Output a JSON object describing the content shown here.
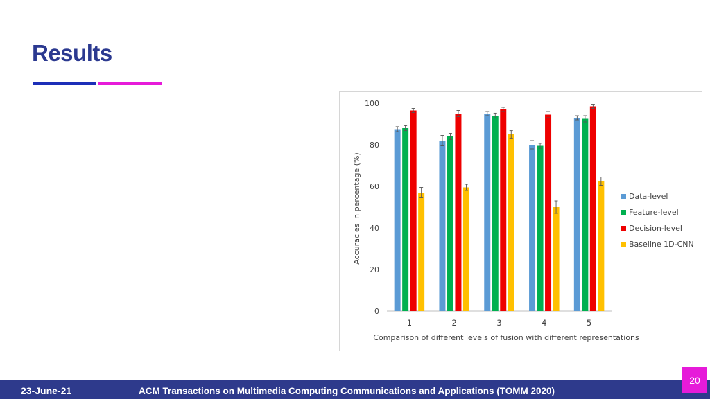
{
  "slide": {
    "title": "Results",
    "footer_date": "23-June-21",
    "footer_journal": "ACM Transactions on Multimedia Computing Communications and Applications (TOMM 2020)",
    "page_number": "20"
  },
  "colors": {
    "title": "#2b3990",
    "underline_left": "#1c2fb8",
    "underline_right": "#e61bd9",
    "footer": "#2e3a8c",
    "page_badge": "#e61bd9"
  },
  "chart_data": {
    "type": "bar",
    "title": "",
    "xlabel": "Comparison of different levels of fusion with different representations",
    "ylabel": "Accuracies in percentage (%)",
    "ylim": [
      0,
      100
    ],
    "yticks": [
      0,
      20,
      40,
      60,
      80,
      100
    ],
    "grid": false,
    "legend_position": "right",
    "categories": [
      "1",
      "2",
      "3",
      "4",
      "5"
    ],
    "series": [
      {
        "name": "Data-level",
        "color": "#5b9bd5",
        "values": [
          87.5,
          82,
          95,
          80,
          93
        ],
        "errors": [
          1.2,
          2.5,
          1.0,
          2.0,
          1.0
        ]
      },
      {
        "name": "Feature-level",
        "color": "#00b050",
        "values": [
          88,
          84,
          94,
          79.5,
          92.5
        ],
        "errors": [
          1.2,
          1.5,
          1.2,
          1.2,
          1.5
        ]
      },
      {
        "name": "Decision-level",
        "color": "#ee0000",
        "values": [
          96.5,
          95,
          97,
          94.5,
          98.5
        ],
        "errors": [
          1.0,
          1.5,
          1.0,
          1.5,
          1.0
        ]
      },
      {
        "name": "Baseline 1D-CNN",
        "color": "#ffc000",
        "values": [
          57,
          59.5,
          85,
          50,
          62.5
        ],
        "errors": [
          2.5,
          1.5,
          1.8,
          3.0,
          2.0
        ]
      }
    ]
  }
}
